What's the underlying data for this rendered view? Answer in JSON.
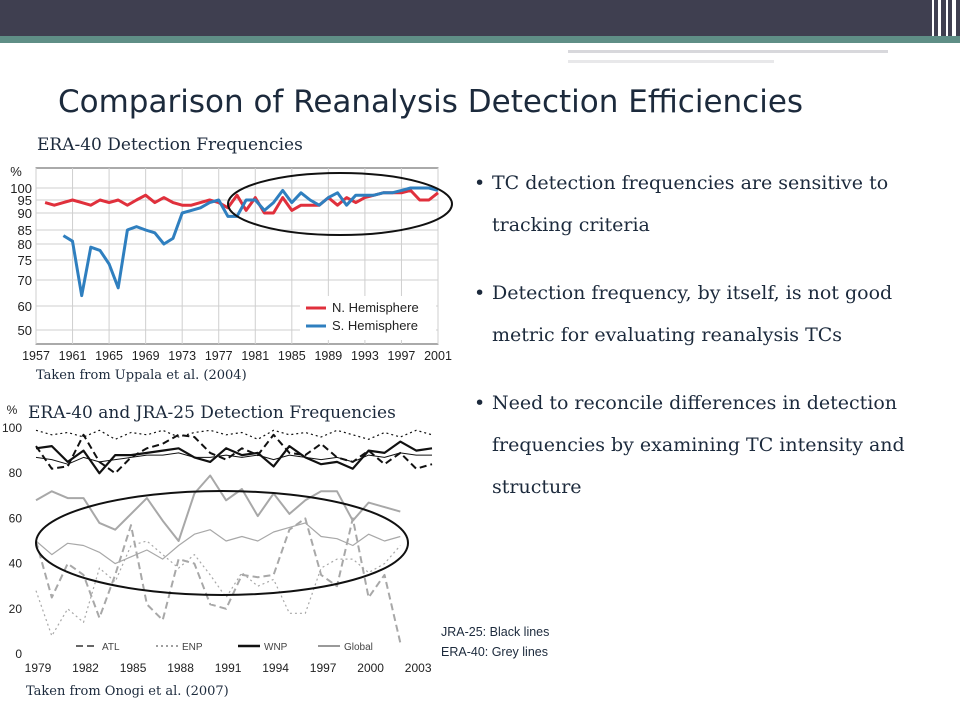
{
  "slide": {
    "title": "Comparison of Reanalysis Detection Efficiencies",
    "colors": {
      "header_bar": "#3f3f50",
      "header_accent": "#5f8e86",
      "title_text": "#1c2a3c"
    }
  },
  "figure1": {
    "caption": "ERA-40 Detection Frequencies",
    "source": "Taken from Uppala et al. (2004)"
  },
  "figure2": {
    "caption": "ERA-40 and JRA-25 Detection Frequencies",
    "source": "Taken from Onogi et al. (2007)",
    "note_line1": "JRA-25: Black lines",
    "note_line2": "ERA-40: Grey lines"
  },
  "bullets": [
    {
      "text": "TC detection frequencies are sensitive to tracking criteria"
    },
    {
      "text": "Detection frequency, by itself, is not good metric for evaluating reanalysis TCs"
    },
    {
      "text": "Need to reconcile differences in detection frequencies by examining TC intensity and structure"
    }
  ],
  "chart_data": [
    {
      "type": "line",
      "yunit": "%",
      "xlim": [
        1957,
        2001
      ],
      "xticks": [
        1957,
        1961,
        1965,
        1969,
        1973,
        1977,
        1981,
        1985,
        1989,
        1993,
        1997,
        2001
      ],
      "yticks": [
        50,
        60,
        70,
        75,
        80,
        85,
        90,
        95,
        100
      ],
      "ylim": [
        50,
        100
      ],
      "grid": true,
      "legend_position": "bottom-right",
      "series": [
        {
          "name": "N. Hemisphere",
          "color": "#e0303c",
          "x": [
            1958,
            1959,
            1960,
            1961,
            1962,
            1963,
            1964,
            1965,
            1966,
            1967,
            1968,
            1969,
            1970,
            1971,
            1972,
            1973,
            1974,
            1975,
            1976,
            1977,
            1978,
            1979,
            1980,
            1981,
            1982,
            1983,
            1984,
            1985,
            1986,
            1987,
            1988,
            1989,
            1990,
            1991,
            1992,
            1993,
            1994,
            1995,
            1996,
            1997,
            1998,
            1999,
            2000,
            2001
          ],
          "y": [
            94,
            93,
            94,
            95,
            94,
            93,
            95,
            94,
            95,
            93,
            95,
            97,
            94,
            96,
            94,
            93,
            93,
            94,
            95,
            94,
            92,
            97,
            91,
            96,
            90,
            90,
            96,
            91,
            93,
            93,
            93,
            96,
            93,
            96,
            94,
            96,
            97,
            98,
            98,
            98,
            99,
            95,
            95,
            98
          ]
        },
        {
          "name": "S. Hemisphere",
          "color": "#2f7fbf",
          "x": [
            1960,
            1961,
            1962,
            1963,
            1964,
            1965,
            1966,
            1967,
            1968,
            1969,
            1970,
            1971,
            1972,
            1973,
            1974,
            1975,
            1976,
            1977,
            1978,
            1979,
            1980,
            1981,
            1982,
            1983,
            1984,
            1985,
            1986,
            1987,
            1988,
            1989,
            1990,
            1991,
            1992,
            1993,
            1994,
            1995,
            1996,
            1997,
            1998,
            1999,
            2000,
            2001
          ],
          "y": [
            83,
            81,
            64,
            79,
            78,
            74,
            67,
            85,
            86,
            85,
            84,
            80,
            82,
            90,
            91,
            92,
            94,
            95,
            89,
            89,
            95,
            95,
            91,
            94,
            99,
            94,
            98,
            95,
            93,
            96,
            98,
            93,
            97,
            97,
            97,
            98,
            98,
            99,
            100,
            100,
            100,
            99
          ]
        }
      ]
    },
    {
      "type": "line",
      "yunit": "%",
      "xlim": [
        1979,
        2004
      ],
      "xticks": [
        1979,
        1982,
        1985,
        1988,
        1991,
        1994,
        1997,
        2000,
        2003
      ],
      "ylim": [
        0,
        100
      ],
      "yticks": [
        0,
        20,
        40,
        60,
        80,
        100
      ],
      "grid": false,
      "legend_position": "bottom",
      "legend": [
        "ATL",
        "ENP",
        "WNP",
        "Global"
      ],
      "series": [
        {
          "name": "WNP",
          "source": "JRA-25",
          "color": "#111111",
          "dash": "",
          "width": 2.2,
          "x": [
            1979,
            1980,
            1981,
            1982,
            1983,
            1984,
            1985,
            1986,
            1987,
            1988,
            1989,
            1990,
            1991,
            1992,
            1993,
            1994,
            1995,
            1996,
            1997,
            1998,
            1999,
            2000,
            2001,
            2002,
            2003,
            2004
          ],
          "y": [
            91,
            92,
            85,
            90,
            80,
            88,
            88,
            89,
            90,
            91,
            87,
            85,
            91,
            88,
            89,
            83,
            92,
            87,
            84,
            85,
            82,
            90,
            89,
            94,
            90,
            91
          ]
        },
        {
          "name": "Global",
          "source": "JRA-25",
          "color": "#111111",
          "dash": "",
          "width": 1,
          "x": [
            1979,
            1980,
            1981,
            1982,
            1983,
            1984,
            1985,
            1986,
            1987,
            1988,
            1989,
            1990,
            1991,
            1992,
            1993,
            1994,
            1995,
            1996,
            1997,
            1998,
            1999,
            2000,
            2001,
            2002,
            2003,
            2004
          ],
          "y": [
            87,
            86,
            84,
            87,
            85,
            86,
            87,
            88,
            88,
            89,
            87,
            87,
            88,
            87,
            88,
            86,
            88,
            87,
            86,
            87,
            85,
            88,
            87,
            89,
            88,
            88
          ]
        },
        {
          "name": "ATL",
          "source": "JRA-25",
          "color": "#111111",
          "dash": "7 4",
          "width": 2,
          "x": [
            1979,
            1980,
            1981,
            1982,
            1983,
            1984,
            1985,
            1986,
            1987,
            1988,
            1989,
            1990,
            1991,
            1992,
            1993,
            1994,
            1995,
            1996,
            1997,
            1998,
            1999,
            2000,
            2001,
            2002,
            2003,
            2004
          ],
          "y": [
            92,
            82,
            83,
            97,
            85,
            80,
            87,
            91,
            93,
            97,
            96,
            89,
            86,
            91,
            88,
            97,
            89,
            88,
            93,
            87,
            85,
            90,
            84,
            89,
            82,
            84
          ]
        },
        {
          "name": "ENP",
          "source": "JRA-25",
          "color": "#111111",
          "dash": "2 3",
          "width": 1.2,
          "x": [
            1979,
            1980,
            1981,
            1982,
            1983,
            1984,
            1985,
            1986,
            1987,
            1988,
            1989,
            1990,
            1991,
            1992,
            1993,
            1994,
            1995,
            1996,
            1997,
            1998,
            1999,
            2000,
            2001,
            2002,
            2003,
            2004
          ],
          "y": [
            99,
            97,
            98,
            96,
            99,
            95,
            98,
            97,
            99,
            96,
            98,
            99,
            97,
            98,
            95,
            99,
            97,
            98,
            96,
            99,
            97,
            95,
            98,
            96,
            99,
            97
          ]
        },
        {
          "name": "WNP",
          "source": "ERA-40",
          "color": "#a8a8a8",
          "dash": "",
          "width": 2,
          "x": [
            1979,
            1980,
            1981,
            1982,
            1983,
            1984,
            1985,
            1986,
            1987,
            1988,
            1989,
            1990,
            1991,
            1992,
            1993,
            1994,
            1995,
            1996,
            1997,
            1998,
            1999,
            2000,
            2001,
            2002
          ],
          "y": [
            68,
            72,
            69,
            69,
            58,
            55,
            62,
            69,
            59,
            50,
            71,
            79,
            68,
            73,
            61,
            71,
            62,
            68,
            72,
            72,
            59,
            67,
            65,
            63
          ]
        },
        {
          "name": "Global",
          "source": "ERA-40",
          "color": "#a8a8a8",
          "dash": "",
          "width": 1.2,
          "x": [
            1979,
            1980,
            1981,
            1982,
            1983,
            1984,
            1985,
            1986,
            1987,
            1988,
            1989,
            1990,
            1991,
            1992,
            1993,
            1994,
            1995,
            1996,
            1997,
            1998,
            1999,
            2000,
            2001,
            2002
          ],
          "y": [
            50,
            44,
            49,
            48,
            45,
            40,
            43,
            46,
            42,
            48,
            53,
            55,
            50,
            52,
            50,
            54,
            56,
            58,
            52,
            51,
            48,
            53,
            50,
            52
          ]
        },
        {
          "name": "ATL",
          "source": "ERA-40",
          "color": "#a8a8a8",
          "dash": "7 4",
          "width": 2,
          "x": [
            1979,
            1980,
            1981,
            1982,
            1983,
            1984,
            1985,
            1986,
            1987,
            1988,
            1989,
            1990,
            1991,
            1992,
            1993,
            1994,
            1995,
            1996,
            1997,
            1998,
            1999,
            2000,
            2001,
            2002
          ],
          "y": [
            50,
            25,
            40,
            35,
            16,
            35,
            57,
            22,
            15,
            42,
            40,
            22,
            20,
            35,
            34,
            35,
            55,
            60,
            35,
            30,
            60,
            25,
            35,
            5
          ]
        },
        {
          "name": "ENP",
          "source": "ERA-40",
          "color": "#a8a8a8",
          "dash": "2 3",
          "width": 1.2,
          "x": [
            1979,
            1980,
            1981,
            1982,
            1983,
            1984,
            1985,
            1986,
            1987,
            1988,
            1989,
            1990,
            1991,
            1992,
            1993,
            1994,
            1995,
            1996,
            1997,
            1998,
            1999,
            2000,
            2001,
            2002
          ],
          "y": [
            28,
            8,
            20,
            14,
            38,
            32,
            48,
            50,
            44,
            38,
            44,
            35,
            25,
            36,
            30,
            33,
            18,
            18,
            38,
            42,
            42,
            36,
            40,
            48
          ]
        }
      ]
    }
  ]
}
